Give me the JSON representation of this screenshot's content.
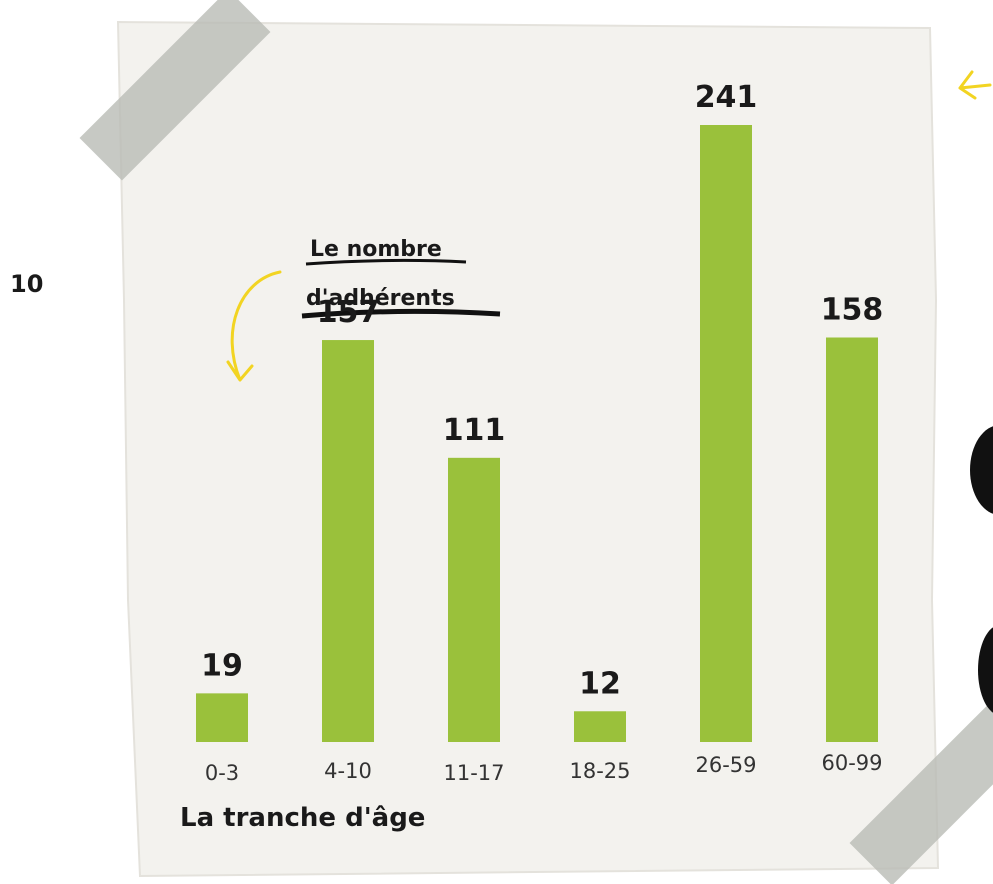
{
  "chart_data": {
    "type": "bar",
    "y_label_lines": [
      "Le nombre",
      "d'adhérents"
    ],
    "x_label": "La tranche d'âge",
    "side_label": "10",
    "categories": [
      "0-3",
      "4-10",
      "11-17",
      "18-25",
      "26-59",
      "60-99"
    ],
    "values": [
      19,
      157,
      111,
      12,
      241,
      158
    ],
    "color": "#9ac13b"
  }
}
